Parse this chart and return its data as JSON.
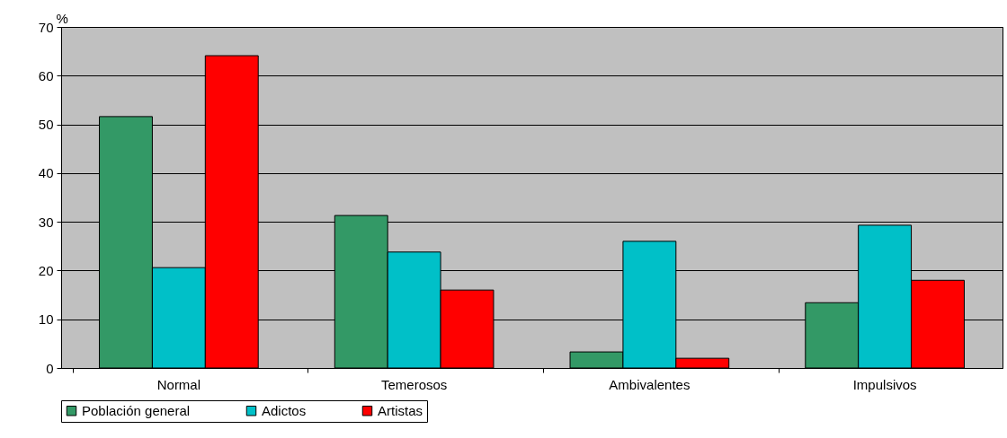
{
  "chart_data": {
    "type": "bar",
    "ylabel": "%",
    "categories": [
      "Normal",
      "Temerosos",
      "Ambivalentes",
      "Impulsivos"
    ],
    "series": [
      {
        "name": "Población general",
        "color": "#339966",
        "values": [
          51.6,
          31.3,
          3.3,
          13.4
        ]
      },
      {
        "name": "Adictos",
        "color": "#00c0c8",
        "values": [
          20.6,
          23.8,
          26.0,
          29.3
        ]
      },
      {
        "name": "Artistas",
        "color": "#ff0000",
        "values": [
          64.1,
          16.0,
          2.0,
          18.0
        ]
      }
    ],
    "ylim": [
      0,
      70
    ],
    "yticks": [
      0,
      10,
      20,
      30,
      40,
      50,
      60,
      70
    ],
    "grid": "y",
    "legend": "bottom"
  }
}
